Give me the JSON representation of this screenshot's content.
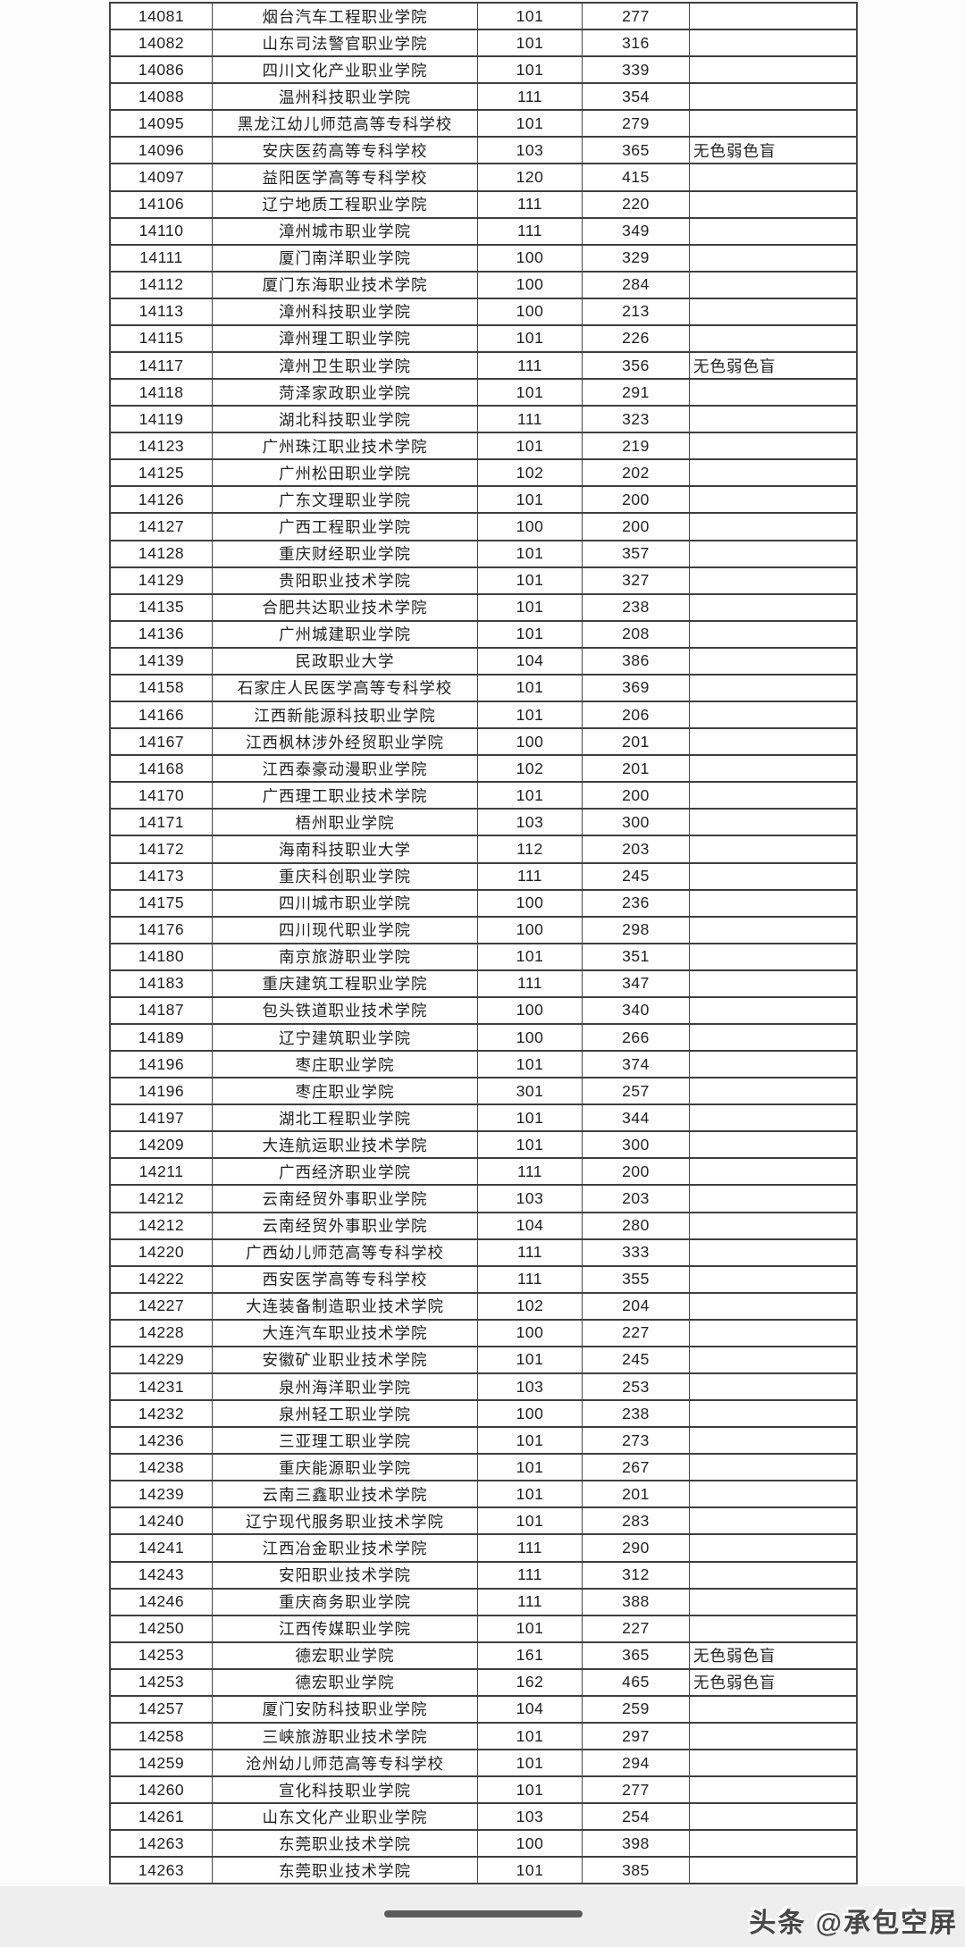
{
  "colors": {
    "page_background": "#fcfcfc",
    "table_border": "#3f3f3f",
    "cell_text": "#212121",
    "bottom_strip": "#eeeeee",
    "home_indicator": "#5c5c5c",
    "watermark_text": "#474747"
  },
  "footer": {
    "watermark": "头条 @承包空屏"
  },
  "table": {
    "rows": [
      {
        "code": "14081",
        "school": "烟台汽车工程职业学院",
        "num1": "101",
        "num2": "277",
        "note": ""
      },
      {
        "code": "14082",
        "school": "山东司法警官职业学院",
        "num1": "101",
        "num2": "316",
        "note": ""
      },
      {
        "code": "14086",
        "school": "四川文化产业职业学院",
        "num1": "101",
        "num2": "339",
        "note": ""
      },
      {
        "code": "14088",
        "school": "温州科技职业学院",
        "num1": "111",
        "num2": "354",
        "note": ""
      },
      {
        "code": "14095",
        "school": "黑龙江幼儿师范高等专科学校",
        "num1": "101",
        "num2": "279",
        "note": ""
      },
      {
        "code": "14096",
        "school": "安庆医药高等专科学校",
        "num1": "103",
        "num2": "365",
        "note": "无色弱色盲"
      },
      {
        "code": "14097",
        "school": "益阳医学高等专科学校",
        "num1": "120",
        "num2": "415",
        "note": ""
      },
      {
        "code": "14106",
        "school": "辽宁地质工程职业学院",
        "num1": "111",
        "num2": "220",
        "note": ""
      },
      {
        "code": "14110",
        "school": "漳州城市职业学院",
        "num1": "111",
        "num2": "349",
        "note": ""
      },
      {
        "code": "14111",
        "school": "厦门南洋职业学院",
        "num1": "100",
        "num2": "329",
        "note": ""
      },
      {
        "code": "14112",
        "school": "厦门东海职业技术学院",
        "num1": "100",
        "num2": "284",
        "note": ""
      },
      {
        "code": "14113",
        "school": "漳州科技职业学院",
        "num1": "100",
        "num2": "213",
        "note": ""
      },
      {
        "code": "14115",
        "school": "漳州理工职业学院",
        "num1": "101",
        "num2": "226",
        "note": ""
      },
      {
        "code": "14117",
        "school": "漳州卫生职业学院",
        "num1": "111",
        "num2": "356",
        "note": "无色弱色盲"
      },
      {
        "code": "14118",
        "school": "菏泽家政职业学院",
        "num1": "101",
        "num2": "291",
        "note": ""
      },
      {
        "code": "14119",
        "school": "湖北科技职业学院",
        "num1": "111",
        "num2": "323",
        "note": ""
      },
      {
        "code": "14123",
        "school": "广州珠江职业技术学院",
        "num1": "101",
        "num2": "219",
        "note": ""
      },
      {
        "code": "14125",
        "school": "广州松田职业学院",
        "num1": "102",
        "num2": "202",
        "note": ""
      },
      {
        "code": "14126",
        "school": "广东文理职业学院",
        "num1": "101",
        "num2": "200",
        "note": ""
      },
      {
        "code": "14127",
        "school": "广西工程职业学院",
        "num1": "100",
        "num2": "200",
        "note": ""
      },
      {
        "code": "14128",
        "school": "重庆财经职业学院",
        "num1": "101",
        "num2": "357",
        "note": ""
      },
      {
        "code": "14129",
        "school": "贵阳职业技术学院",
        "num1": "101",
        "num2": "327",
        "note": ""
      },
      {
        "code": "14135",
        "school": "合肥共达职业技术学院",
        "num1": "101",
        "num2": "238",
        "note": ""
      },
      {
        "code": "14136",
        "school": "广州城建职业学院",
        "num1": "101",
        "num2": "208",
        "note": ""
      },
      {
        "code": "14139",
        "school": "民政职业大学",
        "num1": "104",
        "num2": "386",
        "note": ""
      },
      {
        "code": "14158",
        "school": "石家庄人民医学高等专科学校",
        "num1": "101",
        "num2": "369",
        "note": ""
      },
      {
        "code": "14166",
        "school": "江西新能源科技职业学院",
        "num1": "101",
        "num2": "206",
        "note": ""
      },
      {
        "code": "14167",
        "school": "江西枫林涉外经贸职业学院",
        "num1": "100",
        "num2": "201",
        "note": ""
      },
      {
        "code": "14168",
        "school": "江西泰豪动漫职业学院",
        "num1": "102",
        "num2": "201",
        "note": ""
      },
      {
        "code": "14170",
        "school": "广西理工职业技术学院",
        "num1": "101",
        "num2": "200",
        "note": ""
      },
      {
        "code": "14171",
        "school": "梧州职业学院",
        "num1": "103",
        "num2": "300",
        "note": ""
      },
      {
        "code": "14172",
        "school": "海南科技职业大学",
        "num1": "112",
        "num2": "203",
        "note": ""
      },
      {
        "code": "14173",
        "school": "重庆科创职业学院",
        "num1": "111",
        "num2": "245",
        "note": ""
      },
      {
        "code": "14175",
        "school": "四川城市职业学院",
        "num1": "100",
        "num2": "236",
        "note": ""
      },
      {
        "code": "14176",
        "school": "四川现代职业学院",
        "num1": "100",
        "num2": "298",
        "note": ""
      },
      {
        "code": "14180",
        "school": "南京旅游职业学院",
        "num1": "101",
        "num2": "351",
        "note": ""
      },
      {
        "code": "14183",
        "school": "重庆建筑工程职业学院",
        "num1": "111",
        "num2": "347",
        "note": ""
      },
      {
        "code": "14187",
        "school": "包头铁道职业技术学院",
        "num1": "100",
        "num2": "340",
        "note": ""
      },
      {
        "code": "14189",
        "school": "辽宁建筑职业学院",
        "num1": "100",
        "num2": "266",
        "note": ""
      },
      {
        "code": "14196",
        "school": "枣庄职业学院",
        "num1": "101",
        "num2": "374",
        "note": ""
      },
      {
        "code": "14196",
        "school": "枣庄职业学院",
        "num1": "301",
        "num2": "257",
        "note": ""
      },
      {
        "code": "14197",
        "school": "湖北工程职业学院",
        "num1": "101",
        "num2": "344",
        "note": ""
      },
      {
        "code": "14209",
        "school": "大连航运职业技术学院",
        "num1": "101",
        "num2": "300",
        "note": ""
      },
      {
        "code": "14211",
        "school": "广西经济职业学院",
        "num1": "111",
        "num2": "200",
        "note": ""
      },
      {
        "code": "14212",
        "school": "云南经贸外事职业学院",
        "num1": "103",
        "num2": "203",
        "note": ""
      },
      {
        "code": "14212",
        "school": "云南经贸外事职业学院",
        "num1": "104",
        "num2": "280",
        "note": ""
      },
      {
        "code": "14220",
        "school": "广西幼儿师范高等专科学校",
        "num1": "111",
        "num2": "333",
        "note": ""
      },
      {
        "code": "14222",
        "school": "西安医学高等专科学校",
        "num1": "111",
        "num2": "355",
        "note": ""
      },
      {
        "code": "14227",
        "school": "大连装备制造职业技术学院",
        "num1": "102",
        "num2": "204",
        "note": ""
      },
      {
        "code": "14228",
        "school": "大连汽车职业技术学院",
        "num1": "100",
        "num2": "227",
        "note": ""
      },
      {
        "code": "14229",
        "school": "安徽矿业职业技术学院",
        "num1": "101",
        "num2": "245",
        "note": ""
      },
      {
        "code": "14231",
        "school": "泉州海洋职业学院",
        "num1": "103",
        "num2": "253",
        "note": ""
      },
      {
        "code": "14232",
        "school": "泉州轻工职业学院",
        "num1": "100",
        "num2": "238",
        "note": ""
      },
      {
        "code": "14236",
        "school": "三亚理工职业学院",
        "num1": "101",
        "num2": "273",
        "note": ""
      },
      {
        "code": "14238",
        "school": "重庆能源职业学院",
        "num1": "101",
        "num2": "267",
        "note": ""
      },
      {
        "code": "14239",
        "school": "云南三鑫职业技术学院",
        "num1": "101",
        "num2": "201",
        "note": ""
      },
      {
        "code": "14240",
        "school": "辽宁现代服务职业技术学院",
        "num1": "101",
        "num2": "283",
        "note": ""
      },
      {
        "code": "14241",
        "school": "江西冶金职业技术学院",
        "num1": "111",
        "num2": "290",
        "note": ""
      },
      {
        "code": "14243",
        "school": "安阳职业技术学院",
        "num1": "111",
        "num2": "312",
        "note": ""
      },
      {
        "code": "14246",
        "school": "重庆商务职业学院",
        "num1": "111",
        "num2": "388",
        "note": ""
      },
      {
        "code": "14250",
        "school": "江西传媒职业学院",
        "num1": "101",
        "num2": "227",
        "note": ""
      },
      {
        "code": "14253",
        "school": "德宏职业学院",
        "num1": "161",
        "num2": "365",
        "note": "无色弱色盲"
      },
      {
        "code": "14253",
        "school": "德宏职业学院",
        "num1": "162",
        "num2": "465",
        "note": "无色弱色盲"
      },
      {
        "code": "14257",
        "school": "厦门安防科技职业学院",
        "num1": "104",
        "num2": "259",
        "note": ""
      },
      {
        "code": "14258",
        "school": "三峡旅游职业技术学院",
        "num1": "101",
        "num2": "297",
        "note": ""
      },
      {
        "code": "14259",
        "school": "沧州幼儿师范高等专科学校",
        "num1": "101",
        "num2": "294",
        "note": ""
      },
      {
        "code": "14260",
        "school": "宣化科技职业学院",
        "num1": "101",
        "num2": "277",
        "note": ""
      },
      {
        "code": "14261",
        "school": "山东文化产业职业学院",
        "num1": "103",
        "num2": "254",
        "note": ""
      },
      {
        "code": "14263",
        "school": "东莞职业技术学院",
        "num1": "100",
        "num2": "398",
        "note": ""
      },
      {
        "code": "14263",
        "school": "东莞职业技术学院",
        "num1": "101",
        "num2": "385",
        "note": ""
      }
    ]
  }
}
